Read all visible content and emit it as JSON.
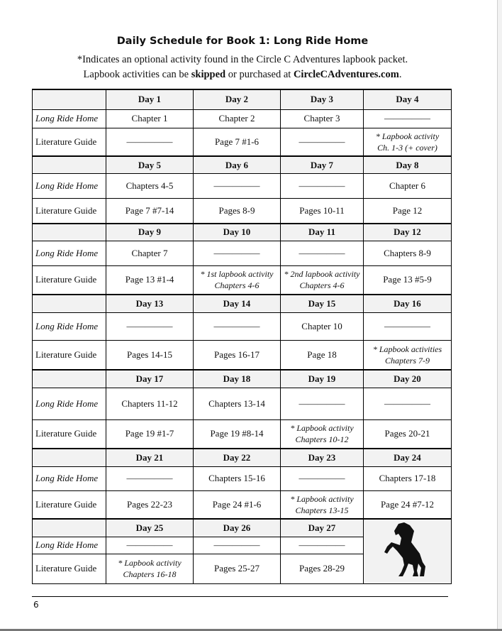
{
  "title": "Daily Schedule for Book 1: Long Ride Home",
  "subtitle_line1": "*Indicates an optional activity found in the Circle C Adventures lapbook packet.",
  "subtitle_line2": {
    "a": "Lapbook activities can be ",
    "b": "skipped",
    "c": " or purchased at ",
    "d": "CircleCAdventures.com",
    "e": "."
  },
  "row_labels": {
    "book": "Long Ride Home",
    "guide": "Literature Guide"
  },
  "weeks": [
    {
      "days": [
        "Day 1",
        "Day 2",
        "Day 3",
        "Day 4"
      ],
      "book": [
        "Chapter 1",
        "Chapter 2",
        "Chapter 3",
        "—————"
      ],
      "guide": [
        "—————",
        "Page 7 #1-6",
        "—————",
        "* Lapbook activity\nCh. 1-3 (+ cover)"
      ]
    },
    {
      "days": [
        "Day 5",
        "Day 6",
        "Day 7",
        "Day 8"
      ],
      "book": [
        "Chapters 4-5",
        "—————",
        "—————",
        "Chapter 6"
      ],
      "guide": [
        "Page 7  #7-14",
        "Pages 8-9",
        "Pages 10-11",
        "Page 12"
      ]
    },
    {
      "days": [
        "Day 9",
        "Day 10",
        "Day 11",
        "Day 12"
      ],
      "book": [
        "Chapter 7",
        "—————",
        "—————",
        "Chapters 8-9"
      ],
      "guide": [
        "Page 13  #1-4",
        "* 1st lapbook activity\nChapters 4-6",
        "* 2nd lapbook activity\nChapters 4-6",
        "Page 13 #5-9"
      ]
    },
    {
      "days": [
        "Day 13",
        "Day 14",
        "Day 15",
        "Day 16"
      ],
      "book": [
        "—————",
        "—————",
        "Chapter 10",
        "—————"
      ],
      "guide": [
        "Pages 14-15",
        "Pages 16-17",
        "Page 18",
        "* Lapbook activities\nChapters 7-9"
      ]
    },
    {
      "days": [
        "Day 17",
        "Day 18",
        "Day 19",
        "Day 20"
      ],
      "book": [
        "Chapters 11-12",
        "Chapters 13-14",
        "—————",
        "—————"
      ],
      "guide": [
        "Page 19  #1-7",
        "Page 19  #8-14",
        "* Lapbook activity\nChapters 10-12",
        "Pages 20-21"
      ]
    },
    {
      "days": [
        "Day 21",
        "Day 22",
        "Day 23",
        "Day 24"
      ],
      "book": [
        "—————",
        "Chapters 15-16",
        "—————",
        "Chapters 17-18"
      ],
      "guide": [
        "Pages 22-23",
        "Page 24  #1-6",
        "* Lapbook activity\nChapters 13-15",
        "Page 24  #7-12"
      ]
    },
    {
      "days": [
        "Day 25",
        "Day 26",
        "Day 27"
      ],
      "book": [
        "—————",
        "—————",
        "—————"
      ],
      "guide": [
        "* Lapbook activity\nChapters 16-18",
        "Pages 25-27",
        "Pages 28-29"
      ]
    }
  ],
  "row_heights": null,
  "page_number": "6",
  "icons": {
    "corner": "rearing-horse-icon"
  }
}
